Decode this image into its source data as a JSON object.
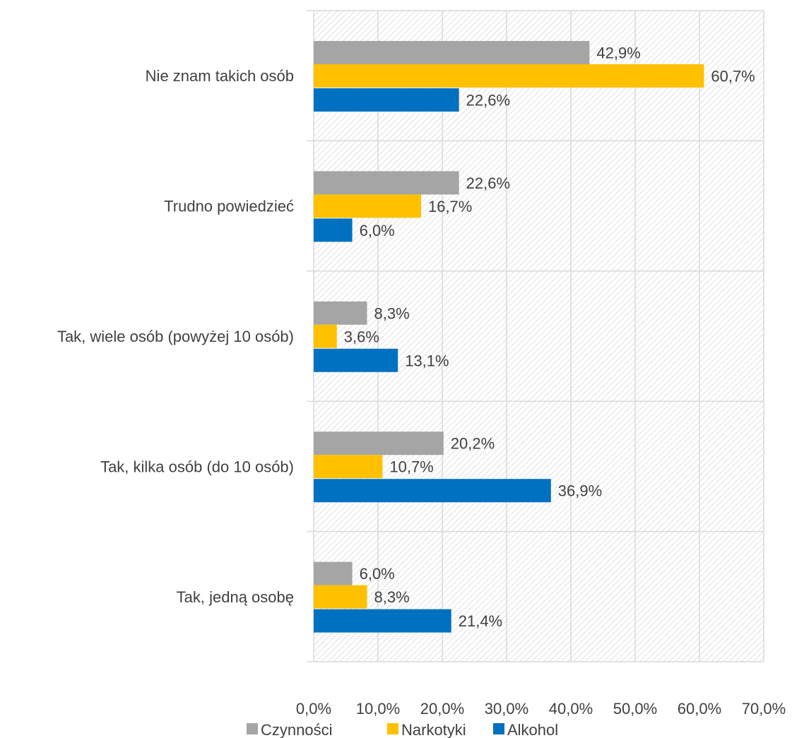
{
  "chart_data": {
    "type": "bar",
    "orientation": "horizontal",
    "title": "",
    "xlabel": "",
    "ylabel": "",
    "categories": [
      "Nie znam takich osób",
      "Trudno powiedzieć",
      "Tak, wiele osób (powyżej 10 osób)",
      "Tak, kilka osób (do 10 osób)",
      "Tak, jedną osobę"
    ],
    "series": [
      {
        "name": "Czynności",
        "color": "#a5a5a5",
        "values": [
          42.9,
          22.6,
          8.3,
          20.2,
          6.0
        ],
        "labels": [
          "42,9%",
          "22,6%",
          "8,3%",
          "20,2%",
          "6,0%"
        ]
      },
      {
        "name": "Narkotyki",
        "color": "#ffc000",
        "values": [
          60.7,
          16.7,
          3.6,
          10.7,
          8.3
        ],
        "labels": [
          "60,7%",
          "16,7%",
          "3,6%",
          "10,7%",
          "8,3%"
        ]
      },
      {
        "name": "Alkohol",
        "color": "#0070c0",
        "values": [
          22.6,
          6.0,
          13.1,
          36.9,
          21.4
        ],
        "labels": [
          "22,6%",
          "6,0%",
          "13,1%",
          "36,9%",
          "21,4%"
        ]
      }
    ],
    "xlim": [
      0,
      70
    ],
    "x_ticks": [
      0,
      10,
      20,
      30,
      40,
      50,
      60,
      70
    ],
    "x_tick_labels": [
      "0,0%",
      "10,0%",
      "20,0%",
      "30,0%",
      "40,0%",
      "50,0%",
      "60,0%",
      "70,0%"
    ],
    "grid": true,
    "background": "hatched",
    "legend": {
      "position": "bottom",
      "entries": [
        "Czynności",
        "Narkotyki",
        "Alkohol"
      ]
    }
  }
}
